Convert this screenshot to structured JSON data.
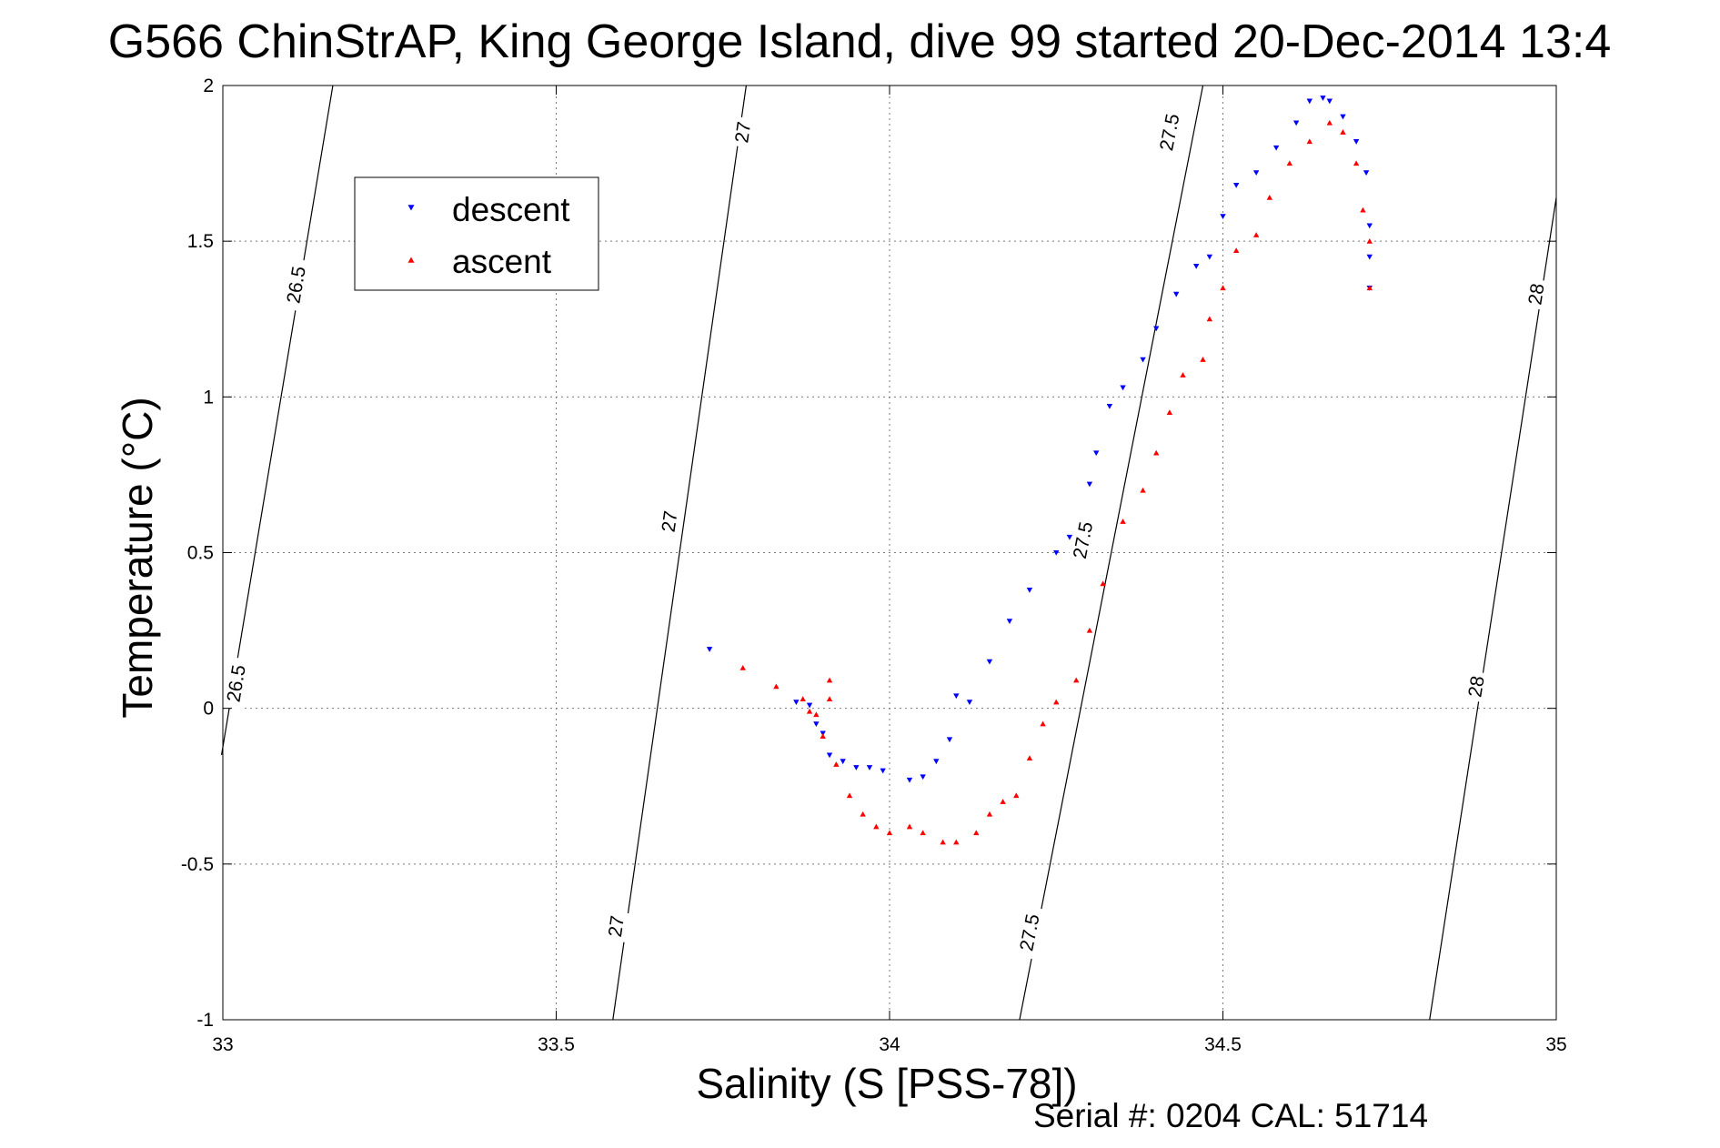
{
  "title": "G566 ChinStrAP, King George Island, dive 99 started 20-Dec-2014 13:4",
  "footer": {
    "serial": "Serial #: 0204  CAL: 51714"
  },
  "colors": {
    "descent": "#0000ff",
    "ascent": "#ff0000",
    "contour": "#000000"
  },
  "chart_data": {
    "type": "scatter",
    "xlabel": "Salinity (S [PSS-78])",
    "ylabel": "Temperature (°C)",
    "xlim": [
      33,
      35
    ],
    "ylim": [
      -1,
      2
    ],
    "xticks": [
      33,
      33.5,
      34,
      34.5,
      35
    ],
    "xtick_labels": [
      "33",
      "33.5",
      "34",
      "34.5",
      "35"
    ],
    "yticks": [
      -1,
      -0.5,
      0,
      0.5,
      1,
      1.5,
      2
    ],
    "ytick_labels": [
      "-1",
      "-0.5",
      "0",
      "0.5",
      "1",
      "1.5",
      "2"
    ],
    "grid": true,
    "legend": {
      "placement": "top-left",
      "entries": [
        "descent",
        "ascent"
      ]
    },
    "contours": [
      {
        "level": "26.5",
        "points": [
          [
            32.998,
            -0.15
          ],
          [
            33.165,
            2.0
          ]
        ],
        "labels": [
          {
            "text": "26.5",
            "x": 33.02,
            "y": 0.08
          },
          {
            "text": "26.5",
            "x": 33.11,
            "y": 1.36
          }
        ]
      },
      {
        "level": "27",
        "points": [
          [
            33.585,
            -1.0
          ],
          [
            33.785,
            2.0
          ]
        ],
        "labels": [
          {
            "text": "27",
            "x": 33.59,
            "y": -0.7
          },
          {
            "text": "27",
            "x": 33.67,
            "y": 0.6
          },
          {
            "text": "27",
            "x": 33.78,
            "y": 1.85
          }
        ]
      },
      {
        "level": "27.5",
        "points": [
          [
            34.195,
            -1.0
          ],
          [
            34.47,
            2.0
          ]
        ],
        "labels": [
          {
            "text": "27.5",
            "x": 34.21,
            "y": -0.72
          },
          {
            "text": "27.5",
            "x": 34.29,
            "y": 0.54
          },
          {
            "text": "27.5",
            "x": 34.42,
            "y": 1.85
          }
        ]
      },
      {
        "level": "28",
        "points": [
          [
            34.81,
            -1.0
          ],
          [
            35.0,
            1.64
          ]
        ],
        "labels": [
          {
            "text": "28",
            "x": 34.88,
            "y": 0.07
          },
          {
            "text": "28",
            "x": 34.97,
            "y": 1.33
          }
        ]
      }
    ],
    "series": [
      {
        "name": "descent",
        "color": "#0000ff",
        "marker": "triangle-down",
        "points": [
          [
            33.73,
            0.19
          ],
          [
            33.86,
            0.02
          ],
          [
            33.88,
            0.01
          ],
          [
            33.89,
            -0.05
          ],
          [
            33.9,
            -0.08
          ],
          [
            33.91,
            -0.15
          ],
          [
            33.93,
            -0.17
          ],
          [
            33.95,
            -0.19
          ],
          [
            33.97,
            -0.19
          ],
          [
            33.99,
            -0.2
          ],
          [
            34.03,
            -0.23
          ],
          [
            34.05,
            -0.22
          ],
          [
            34.07,
            -0.17
          ],
          [
            34.09,
            -0.1
          ],
          [
            34.1,
            0.04
          ],
          [
            34.12,
            0.02
          ],
          [
            34.15,
            0.15
          ],
          [
            34.18,
            0.28
          ],
          [
            34.21,
            0.38
          ],
          [
            34.25,
            0.5
          ],
          [
            34.27,
            0.55
          ],
          [
            34.3,
            0.72
          ],
          [
            34.31,
            0.82
          ],
          [
            34.33,
            0.97
          ],
          [
            34.35,
            1.03
          ],
          [
            34.38,
            1.12
          ],
          [
            34.4,
            1.22
          ],
          [
            34.43,
            1.33
          ],
          [
            34.46,
            1.42
          ],
          [
            34.48,
            1.45
          ],
          [
            34.5,
            1.58
          ],
          [
            34.52,
            1.68
          ],
          [
            34.55,
            1.72
          ],
          [
            34.58,
            1.8
          ],
          [
            34.61,
            1.88
          ],
          [
            34.63,
            1.95
          ],
          [
            34.65,
            1.96
          ],
          [
            34.66,
            1.95
          ],
          [
            34.68,
            1.9
          ],
          [
            34.7,
            1.82
          ],
          [
            34.715,
            1.72
          ],
          [
            34.72,
            1.55
          ],
          [
            34.72,
            1.45
          ],
          [
            34.72,
            1.35
          ]
        ]
      },
      {
        "name": "ascent",
        "color": "#ff0000",
        "marker": "triangle-up",
        "points": [
          [
            33.78,
            0.13
          ],
          [
            33.83,
            0.07
          ],
          [
            33.87,
            0.03
          ],
          [
            33.88,
            -0.01
          ],
          [
            33.89,
            -0.02
          ],
          [
            33.91,
            0.03
          ],
          [
            33.91,
            0.09
          ],
          [
            33.9,
            -0.09
          ],
          [
            33.92,
            -0.18
          ],
          [
            33.94,
            -0.28
          ],
          [
            33.96,
            -0.34
          ],
          [
            33.98,
            -0.38
          ],
          [
            34.0,
            -0.4
          ],
          [
            34.03,
            -0.38
          ],
          [
            34.05,
            -0.4
          ],
          [
            34.08,
            -0.43
          ],
          [
            34.1,
            -0.43
          ],
          [
            34.13,
            -0.4
          ],
          [
            34.15,
            -0.34
          ],
          [
            34.17,
            -0.3
          ],
          [
            34.19,
            -0.28
          ],
          [
            34.21,
            -0.16
          ],
          [
            34.23,
            -0.05
          ],
          [
            34.25,
            0.02
          ],
          [
            34.28,
            0.09
          ],
          [
            34.3,
            0.25
          ],
          [
            34.32,
            0.4
          ],
          [
            34.35,
            0.6
          ],
          [
            34.38,
            0.7
          ],
          [
            34.4,
            0.82
          ],
          [
            34.42,
            0.95
          ],
          [
            34.44,
            1.07
          ],
          [
            34.47,
            1.12
          ],
          [
            34.48,
            1.25
          ],
          [
            34.5,
            1.35
          ],
          [
            34.52,
            1.47
          ],
          [
            34.55,
            1.52
          ],
          [
            34.57,
            1.64
          ],
          [
            34.6,
            1.75
          ],
          [
            34.63,
            1.82
          ],
          [
            34.66,
            1.88
          ],
          [
            34.68,
            1.85
          ],
          [
            34.7,
            1.75
          ],
          [
            34.71,
            1.6
          ],
          [
            34.72,
            1.5
          ],
          [
            34.72,
            1.35
          ]
        ]
      }
    ]
  }
}
